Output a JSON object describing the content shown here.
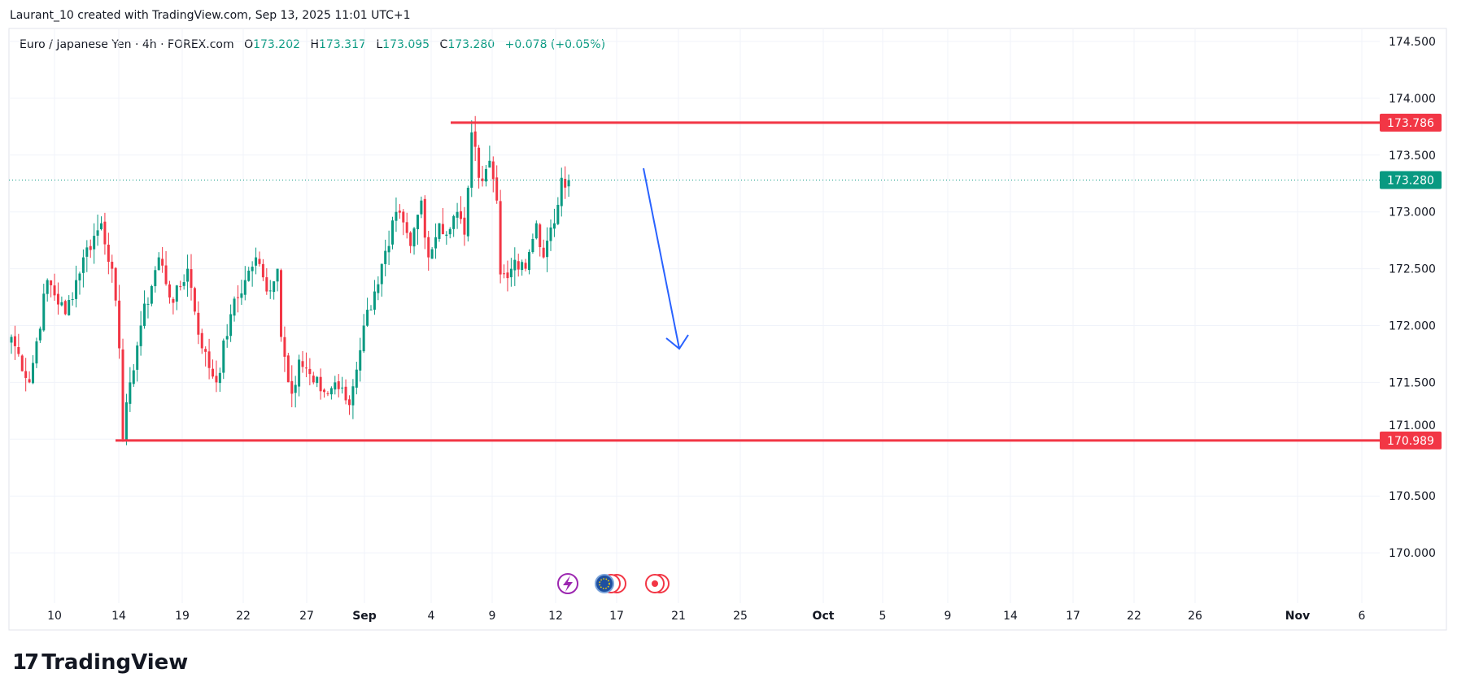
{
  "attribution": "Laurant_10 created with TradingView.com, Sep 13, 2025 11:01 UTC+1",
  "legend": {
    "symbol": "Euro / Japanese Yen · 4h · FOREX.com",
    "o_label": "O",
    "o": "173.202",
    "h_label": "H",
    "h": "173.317",
    "l_label": "L",
    "l": "173.095",
    "c_label": "C",
    "c": "173.280",
    "change": "+0.078 (+0.05%)"
  },
  "logo": {
    "mark": "17",
    "text": "TradingView"
  },
  "colors": {
    "up": "#089981",
    "down": "#f23645",
    "arrow": "#2962ff",
    "grid": "#f0f3fa"
  },
  "chart_data": {
    "type": "candlestick",
    "title": "Euro / Japanese Yen · 4h · FOREX.com",
    "ylim": [
      169.65,
      174.6
    ],
    "y_ticks": [
      "174.500",
      "174.000",
      "173.500",
      "173.000",
      "172.500",
      "172.000",
      "171.500",
      "171.000",
      "170.500",
      "170.000"
    ],
    "x_ticks": [
      {
        "label": "10"
      },
      {
        "label": "14"
      },
      {
        "label": "19"
      },
      {
        "label": "22"
      },
      {
        "label": "27"
      },
      {
        "label": "Sep",
        "bold": true
      },
      {
        "label": "4"
      },
      {
        "label": "9"
      },
      {
        "label": "12"
      },
      {
        "label": "17"
      },
      {
        "label": "21"
      },
      {
        "label": "25"
      },
      {
        "label": "Oct",
        "bold": true
      },
      {
        "label": "5"
      },
      {
        "label": "9"
      },
      {
        "label": "14"
      },
      {
        "label": "17"
      },
      {
        "label": "22"
      },
      {
        "label": "26"
      },
      {
        "label": "Nov",
        "bold": true
      },
      {
        "label": "6"
      }
    ],
    "close_waypoints": [
      [
        0,
        171.9
      ],
      [
        5,
        171.5
      ],
      [
        10,
        172.4
      ],
      [
        15,
        172.1
      ],
      [
        20,
        172.6
      ],
      [
        25,
        172.9
      ],
      [
        28,
        172.5
      ],
      [
        30,
        171.8
      ],
      [
        31,
        171.0
      ],
      [
        33,
        171.5
      ],
      [
        36,
        172.0
      ],
      [
        41,
        172.6
      ],
      [
        45,
        172.2
      ],
      [
        49,
        172.5
      ],
      [
        53,
        171.8
      ],
      [
        57,
        171.5
      ],
      [
        61,
        172.1
      ],
      [
        65,
        172.4
      ],
      [
        68,
        172.6
      ],
      [
        71,
        172.3
      ],
      [
        74,
        172.5
      ],
      [
        75,
        171.9
      ],
      [
        78,
        171.4
      ],
      [
        80,
        171.7
      ],
      [
        84,
        171.5
      ],
      [
        88,
        171.4
      ],
      [
        90,
        171.5
      ],
      [
        94,
        171.3
      ],
      [
        98,
        172.0
      ],
      [
        101,
        172.3
      ],
      [
        105,
        172.7
      ],
      [
        107,
        173.0
      ],
      [
        111,
        172.7
      ],
      [
        114,
        173.1
      ],
      [
        116,
        172.6
      ],
      [
        119,
        172.9
      ],
      [
        121,
        172.8
      ],
      [
        124,
        173.0
      ],
      [
        126,
        172.8
      ],
      [
        128,
        173.7
      ],
      [
        130,
        173.3
      ],
      [
        133,
        173.45
      ],
      [
        135,
        173.1
      ],
      [
        136,
        172.45
      ],
      [
        139,
        172.5
      ],
      [
        143,
        172.5
      ],
      [
        146,
        172.9
      ],
      [
        148,
        172.6
      ],
      [
        151,
        172.9
      ],
      [
        153,
        173.3
      ],
      [
        155,
        173.28
      ]
    ],
    "horizontal_lines": [
      {
        "price": 173.786,
        "label": "173.786",
        "color": "#f23645"
      },
      {
        "price": 170.989,
        "label": "170.989",
        "color": "#f23645"
      }
    ],
    "last_price": {
      "price": 173.28,
      "label": "173.280",
      "color": "#089981"
    },
    "annotations": [
      {
        "type": "arrow",
        "direction": "down",
        "from_price": 173.4,
        "to_price": 171.8,
        "color": "#2962ff"
      }
    ]
  }
}
